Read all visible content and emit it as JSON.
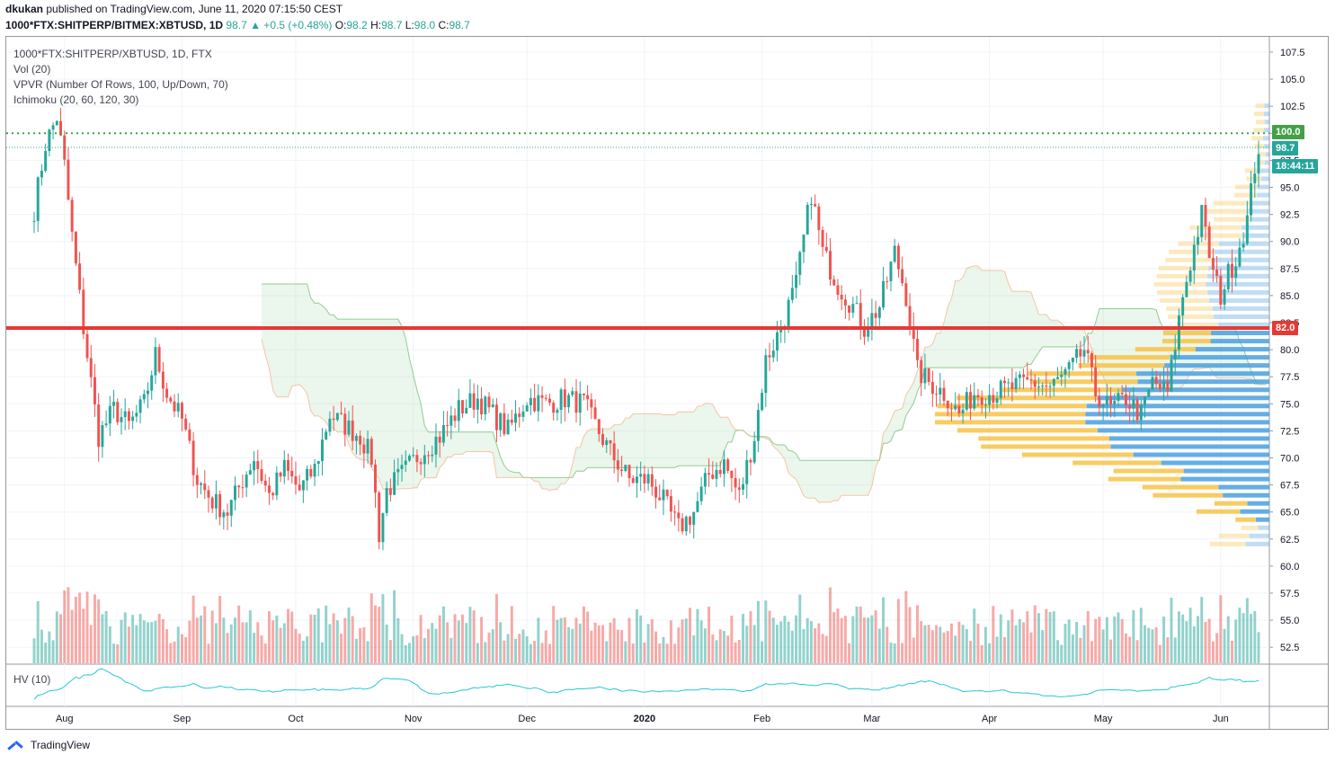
{
  "header": {
    "author": "dkukan",
    "published_text": "published on TradingView.com, June 11, 2020 07:15:50 CEST"
  },
  "ohlc": {
    "symbol": "1000*FTX:SHITPERP/BITMEX:XBTUSD, 1D",
    "last": "98.7",
    "change": "▲ +0.5 (+0.48%)",
    "o_label": "O:",
    "o": "98.2",
    "h_label": "H:",
    "h": "98.7",
    "l_label": "L:",
    "l": "98.0",
    "c_label": "C:",
    "c": "98.7"
  },
  "legend": {
    "line1": "1000*FTX:SHITPERP/XBTUSD, 1D, FTX",
    "line2": "Vol (20)",
    "line3": "VPVR (Number Of Rows, 100, Up/Down, 70)",
    "line4": "Ichimoku (20, 60, 120, 30)",
    "hv": "HV (10)"
  },
  "price_tags": {
    "target": "100.0",
    "last": "98.7",
    "countdown": "18:44:11",
    "support": "82.0"
  },
  "footer": {
    "brand": "TradingView"
  },
  "colors": {
    "up": "#26a69a",
    "down": "#ef5350",
    "support_line": "#e53935",
    "target_line": "#43a047",
    "vp_up": "#f7c347",
    "vp_down": "#4a9fe0",
    "hv_line": "#26c6da"
  },
  "chart_data": {
    "type": "candlestick",
    "y_axis_ticks": [
      107.5,
      105.0,
      102.5,
      100.0,
      97.5,
      95.0,
      92.5,
      90.0,
      87.5,
      85.0,
      82.5,
      80.0,
      77.5,
      75.0,
      72.5,
      70.0,
      67.5,
      65.0,
      62.5,
      60.0,
      57.5,
      55.0,
      52.5
    ],
    "y_axis_labels": [
      "107.5",
      "105.0",
      "102.5",
      "100.0",
      "97.5",
      "95.0",
      "92.5",
      "90.0",
      "87.5",
      "85.0",
      "82.5",
      "80.0",
      "77.5",
      "75.0",
      "72.5",
      "70.0",
      "67.5",
      "65.0",
      "62.5",
      "60.0",
      "57.5",
      "55.0",
      "52.5"
    ],
    "x_axis_labels": [
      "Aug",
      "Sep",
      "Oct",
      "Nov",
      "Dec",
      "2020",
      "Feb",
      "Mar",
      "Apr",
      "May",
      "Jun"
    ],
    "horizontal_levels": [
      100.0,
      98.7,
      82.0
    ],
    "close_path": [
      [
        "2019-07-24",
        93.0
      ],
      [
        "2019-07-27",
        99.0
      ],
      [
        "2019-07-30",
        101.5
      ],
      [
        "2019-08-01",
        97.0
      ],
      [
        "2019-08-03",
        90.5
      ],
      [
        "2019-08-06",
        82.0
      ],
      [
        "2019-08-10",
        72.0
      ],
      [
        "2019-08-14",
        74.5
      ],
      [
        "2019-08-18",
        73.0
      ],
      [
        "2019-08-22",
        75.0
      ],
      [
        "2019-08-25",
        79.5
      ],
      [
        "2019-08-28",
        76.0
      ],
      [
        "2019-09-01",
        73.5
      ],
      [
        "2019-09-05",
        68.0
      ],
      [
        "2019-09-09",
        66.0
      ],
      [
        "2019-09-13",
        65.0
      ],
      [
        "2019-09-17",
        68.0
      ],
      [
        "2019-09-20",
        70.0
      ],
      [
        "2019-09-24",
        66.5
      ],
      [
        "2019-09-28",
        69.0
      ],
      [
        "2019-10-02",
        67.0
      ],
      [
        "2019-10-06",
        69.0
      ],
      [
        "2019-10-10",
        74.0
      ],
      [
        "2019-10-14",
        73.0
      ],
      [
        "2019-10-18",
        72.0
      ],
      [
        "2019-10-21",
        70.0
      ],
      [
        "2019-10-23",
        63.0
      ],
      [
        "2019-10-25",
        67.0
      ],
      [
        "2019-10-29",
        68.5
      ],
      [
        "2019-11-03",
        70.5
      ],
      [
        "2019-11-08",
        72.0
      ],
      [
        "2019-11-13",
        74.5
      ],
      [
        "2019-11-18",
        75.5
      ],
      [
        "2019-11-22",
        74.0
      ],
      [
        "2019-11-26",
        72.5
      ],
      [
        "2019-12-01",
        75.5
      ],
      [
        "2019-12-06",
        75.0
      ],
      [
        "2019-12-11",
        75.5
      ],
      [
        "2019-12-16",
        75.0
      ],
      [
        "2019-12-19",
        73.0
      ],
      [
        "2019-12-23",
        70.5
      ],
      [
        "2019-12-28",
        68.0
      ],
      [
        "2020-01-02",
        68.0
      ],
      [
        "2020-01-06",
        66.0
      ],
      [
        "2020-01-10",
        63.5
      ],
      [
        "2020-01-14",
        65.0
      ],
      [
        "2020-01-18",
        68.5
      ],
      [
        "2020-01-22",
        69.5
      ],
      [
        "2020-01-26",
        66.5
      ],
      [
        "2020-01-30",
        72.0
      ],
      [
        "2020-02-02",
        79.0
      ],
      [
        "2020-02-06",
        82.0
      ],
      [
        "2020-02-10",
        86.0
      ],
      [
        "2020-02-14",
        94.5
      ],
      [
        "2020-02-17",
        89.0
      ],
      [
        "2020-02-21",
        86.0
      ],
      [
        "2020-02-25",
        84.0
      ],
      [
        "2020-02-28",
        82.0
      ],
      [
        "2020-03-03",
        84.0
      ],
      [
        "2020-03-07",
        89.0
      ],
      [
        "2020-03-10",
        85.0
      ],
      [
        "2020-03-13",
        78.0
      ],
      [
        "2020-03-16",
        77.0
      ],
      [
        "2020-03-20",
        76.0
      ],
      [
        "2020-03-24",
        74.0
      ],
      [
        "2020-03-28",
        76.0
      ],
      [
        "2020-04-02",
        76.0
      ],
      [
        "2020-04-07",
        76.5
      ],
      [
        "2020-04-12",
        77.0
      ],
      [
        "2020-04-17",
        76.5
      ],
      [
        "2020-04-22",
        78.0
      ],
      [
        "2020-04-26",
        80.0
      ],
      [
        "2020-04-29",
        76.0
      ],
      [
        "2020-05-03",
        74.5
      ],
      [
        "2020-05-07",
        75.5
      ],
      [
        "2020-05-11",
        74.0
      ],
      [
        "2020-05-14",
        77.0
      ],
      [
        "2020-05-18",
        76.0
      ],
      [
        "2020-05-22",
        85.0
      ],
      [
        "2020-05-25",
        89.5
      ],
      [
        "2020-05-27",
        92.5
      ],
      [
        "2020-05-30",
        87.0
      ],
      [
        "2020-06-01",
        85.0
      ],
      [
        "2020-06-03",
        87.0
      ],
      [
        "2020-06-05",
        88.5
      ],
      [
        "2020-06-08",
        92.0
      ],
      [
        "2020-06-10",
        97.0
      ],
      [
        "2020-06-11",
        98.7
      ]
    ]
  }
}
